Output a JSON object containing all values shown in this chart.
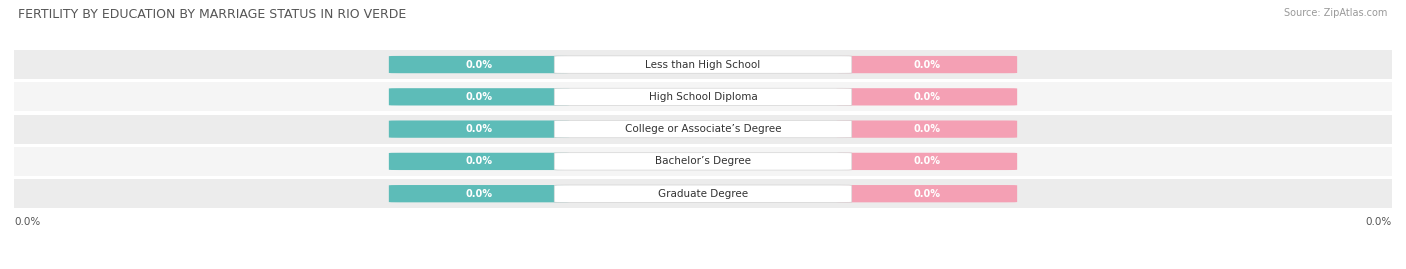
{
  "title": "FERTILITY BY EDUCATION BY MARRIAGE STATUS IN RIO VERDE",
  "source": "Source: ZipAtlas.com",
  "categories": [
    "Less than High School",
    "High School Diploma",
    "College or Associate’s Degree",
    "Bachelor’s Degree",
    "Graduate Degree"
  ],
  "married_values": [
    0.0,
    0.0,
    0.0,
    0.0,
    0.0
  ],
  "unmarried_values": [
    0.0,
    0.0,
    0.0,
    0.0,
    0.0
  ],
  "married_color": "#5dbcb8",
  "unmarried_color": "#f4a0b4",
  "row_colors": [
    "#ececec",
    "#f5f5f5"
  ],
  "title_fontsize": 9,
  "source_fontsize": 7,
  "label_fontsize": 7.5,
  "value_fontsize": 7,
  "legend_fontsize": 8,
  "figsize": [
    14.06,
    2.69
  ],
  "dpi": 100
}
